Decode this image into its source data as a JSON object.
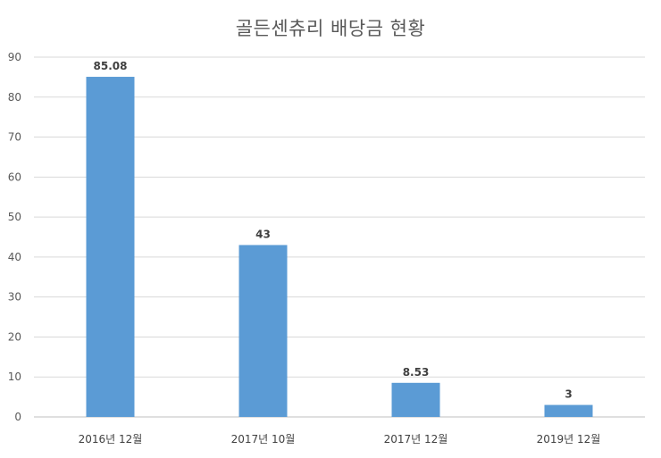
{
  "chart_data": {
    "type": "bar",
    "title": "골든센츄리 배당금 현황",
    "xlabel": "",
    "ylabel": "",
    "categories": [
      "2016년 12월",
      "2017년 10월",
      "2017년 12월",
      "2019년 12월"
    ],
    "values": [
      85.08,
      43,
      8.53,
      3
    ],
    "data_labels": [
      "85.08",
      "43",
      "8.53",
      "3"
    ],
    "ylim": [
      0,
      90
    ],
    "y_ticks": [
      0,
      10,
      20,
      30,
      40,
      50,
      60,
      70,
      80,
      90
    ],
    "grid": true,
    "legend": "none",
    "bar_color": "#5b9bd5"
  }
}
